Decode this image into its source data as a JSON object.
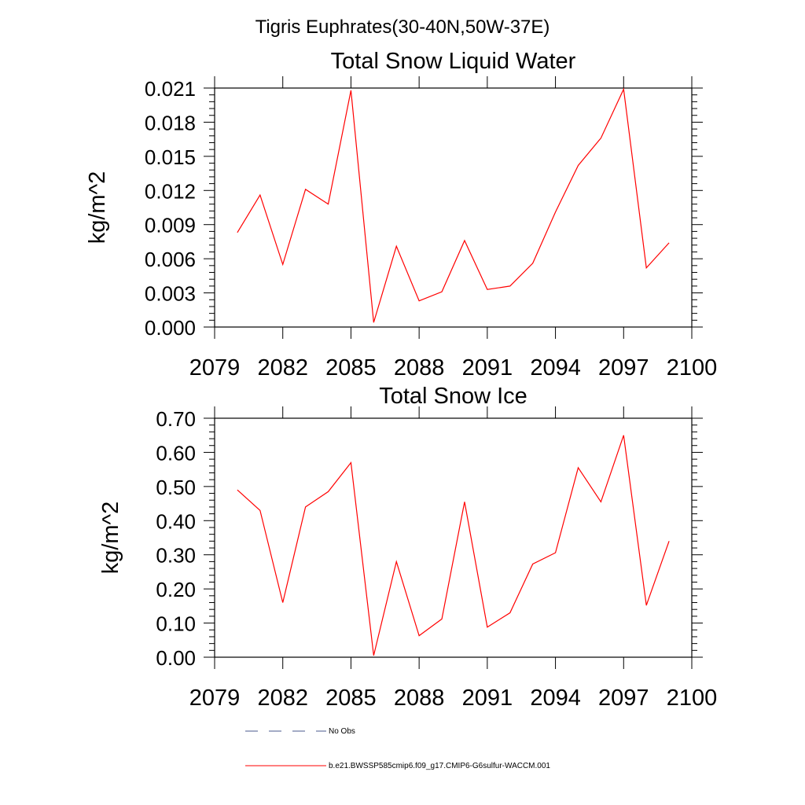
{
  "title": "Tigris Euphrates(30-40N,50W-37E)",
  "chart_data": [
    {
      "type": "line",
      "title": "Total Snow Liquid Water",
      "ylabel": "kg/m^2",
      "xlabel": "",
      "xlim": [
        2079,
        2100
      ],
      "ylim": [
        0,
        0.021
      ],
      "xticks": [
        "2079",
        "2082",
        "2085",
        "2088",
        "2091",
        "2094",
        "2097",
        "2100"
      ],
      "yticks": [
        "0.000",
        "0.003",
        "0.006",
        "0.009",
        "0.012",
        "0.015",
        "0.018",
        "0.021"
      ],
      "series": [
        {
          "name": "b.e21.BWSSP585cmip6.f09_g17.CMIP6-G6sulfur-WACCM.001",
          "color": "#ff0000",
          "x": [
            2080,
            2081,
            2082,
            2083,
            2084,
            2085,
            2086,
            2087,
            2088,
            2089,
            2090,
            2091,
            2092,
            2093,
            2094,
            2095,
            2096,
            2097,
            2098,
            2099
          ],
          "y": [
            0.0083,
            0.0116,
            0.0055,
            0.0121,
            0.0108,
            0.0208,
            0.0004,
            0.0071,
            0.0023,
            0.0031,
            0.0076,
            0.0033,
            0.0036,
            0.0056,
            0.0101,
            0.0142,
            0.0166,
            0.0209,
            0.0052,
            0.0074
          ]
        }
      ]
    },
    {
      "type": "line",
      "title": "Total Snow Ice",
      "ylabel": "kg/m^2",
      "xlabel": "",
      "xlim": [
        2079,
        2100
      ],
      "ylim": [
        0,
        0.7
      ],
      "xticks": [
        "2079",
        "2082",
        "2085",
        "2088",
        "2091",
        "2094",
        "2097",
        "2100"
      ],
      "yticks": [
        "0.00",
        "0.10",
        "0.20",
        "0.30",
        "0.40",
        "0.50",
        "0.60",
        "0.70"
      ],
      "series": [
        {
          "name": "b.e21.BWSSP585cmip6.f09_g17.CMIP6-G6sulfur-WACCM.001",
          "color": "#ff0000",
          "x": [
            2080,
            2081,
            2082,
            2083,
            2084,
            2085,
            2086,
            2087,
            2088,
            2089,
            2090,
            2091,
            2092,
            2093,
            2094,
            2095,
            2096,
            2097,
            2098,
            2099
          ],
          "y": [
            0.49,
            0.43,
            0.16,
            0.44,
            0.485,
            0.57,
            0.005,
            0.28,
            0.063,
            0.112,
            0.455,
            0.088,
            0.13,
            0.273,
            0.306,
            0.555,
            0.455,
            0.65,
            0.152,
            0.34
          ]
        }
      ]
    }
  ],
  "legend": [
    {
      "label": "No Obs",
      "style": "dashed",
      "color": "#4a5a8c"
    },
    {
      "label": "b.e21.BWSSP585cmip6.f09_g17.CMIP6-G6sulfur-WACCM.001",
      "style": "solid",
      "color": "#ff0000"
    }
  ]
}
